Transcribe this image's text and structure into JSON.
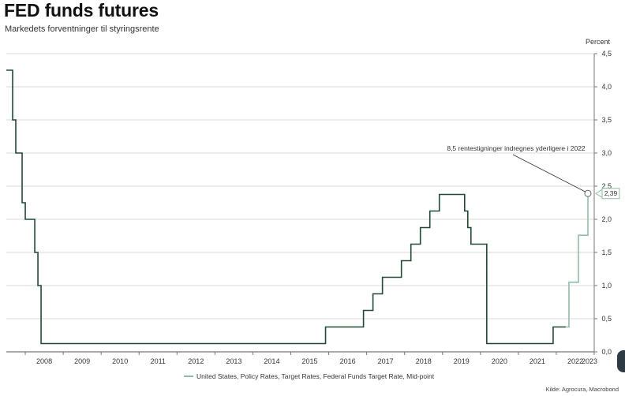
{
  "title": "FED funds futures",
  "subtitle": "Markedets forventninger til styringsrente",
  "source": "Kilde: Agrocura, Macrobond",
  "chart_data": {
    "type": "line",
    "title": "FED funds futures",
    "subtitle": "Markedets forventninger til styringsrente",
    "ylabel": "Percent",
    "ylim": [
      0,
      4.5
    ],
    "yticks": [
      "0,0",
      "0,5",
      "1,0",
      "1,5",
      "2,0",
      "2,5",
      "3,0",
      "3,5",
      "4,0",
      "4,5"
    ],
    "xlim": [
      "2007-07",
      "2023-01"
    ],
    "xticks": [
      "2008",
      "2009",
      "2010",
      "2011",
      "2012",
      "2013",
      "2014",
      "2015",
      "2016",
      "2017",
      "2018",
      "2019",
      "2020",
      "2021",
      "2022",
      "2023"
    ],
    "grid": "horizontal",
    "legend_position": "bottom",
    "colors": {
      "historical": "#1e4a35",
      "forecast": "#8fbfa6"
    },
    "series": [
      {
        "name": "United States, Policy Rates, Target Rates, Federal Funds Target Rate, Mid-point",
        "historical": [
          [
            "2007-07",
            4.25
          ],
          [
            "2007-09",
            3.5
          ],
          [
            "2007-10",
            3.0
          ],
          [
            "2007-12",
            2.25
          ],
          [
            "2008-01",
            2.0
          ],
          [
            "2008-04",
            1.5
          ],
          [
            "2008-05",
            1.0
          ],
          [
            "2008-06",
            0.125
          ],
          [
            "2015-12",
            0.375
          ],
          [
            "2016-12",
            0.625
          ],
          [
            "2017-03",
            0.875
          ],
          [
            "2017-06",
            1.125
          ],
          [
            "2017-12",
            1.375
          ],
          [
            "2018-03",
            1.625
          ],
          [
            "2018-06",
            1.875
          ],
          [
            "2018-09",
            2.125
          ],
          [
            "2018-12",
            2.375
          ],
          [
            "2019-08",
            2.125
          ],
          [
            "2019-09",
            1.875
          ],
          [
            "2019-10",
            1.625
          ],
          [
            "2020-03",
            0.125
          ],
          [
            "2021-12",
            0.375
          ]
        ],
        "forecast": [
          [
            "2022-04",
            0.375
          ],
          [
            "2022-05",
            1.05
          ],
          [
            "2022-08",
            1.76
          ],
          [
            "2022-11",
            2.39
          ]
        ]
      }
    ],
    "annotations": [
      {
        "text": "8,5 rentestigninger indregnes yderligere i 2022",
        "x": "2022-11",
        "y": 2.39
      }
    ],
    "end_value_label": "2,39"
  }
}
